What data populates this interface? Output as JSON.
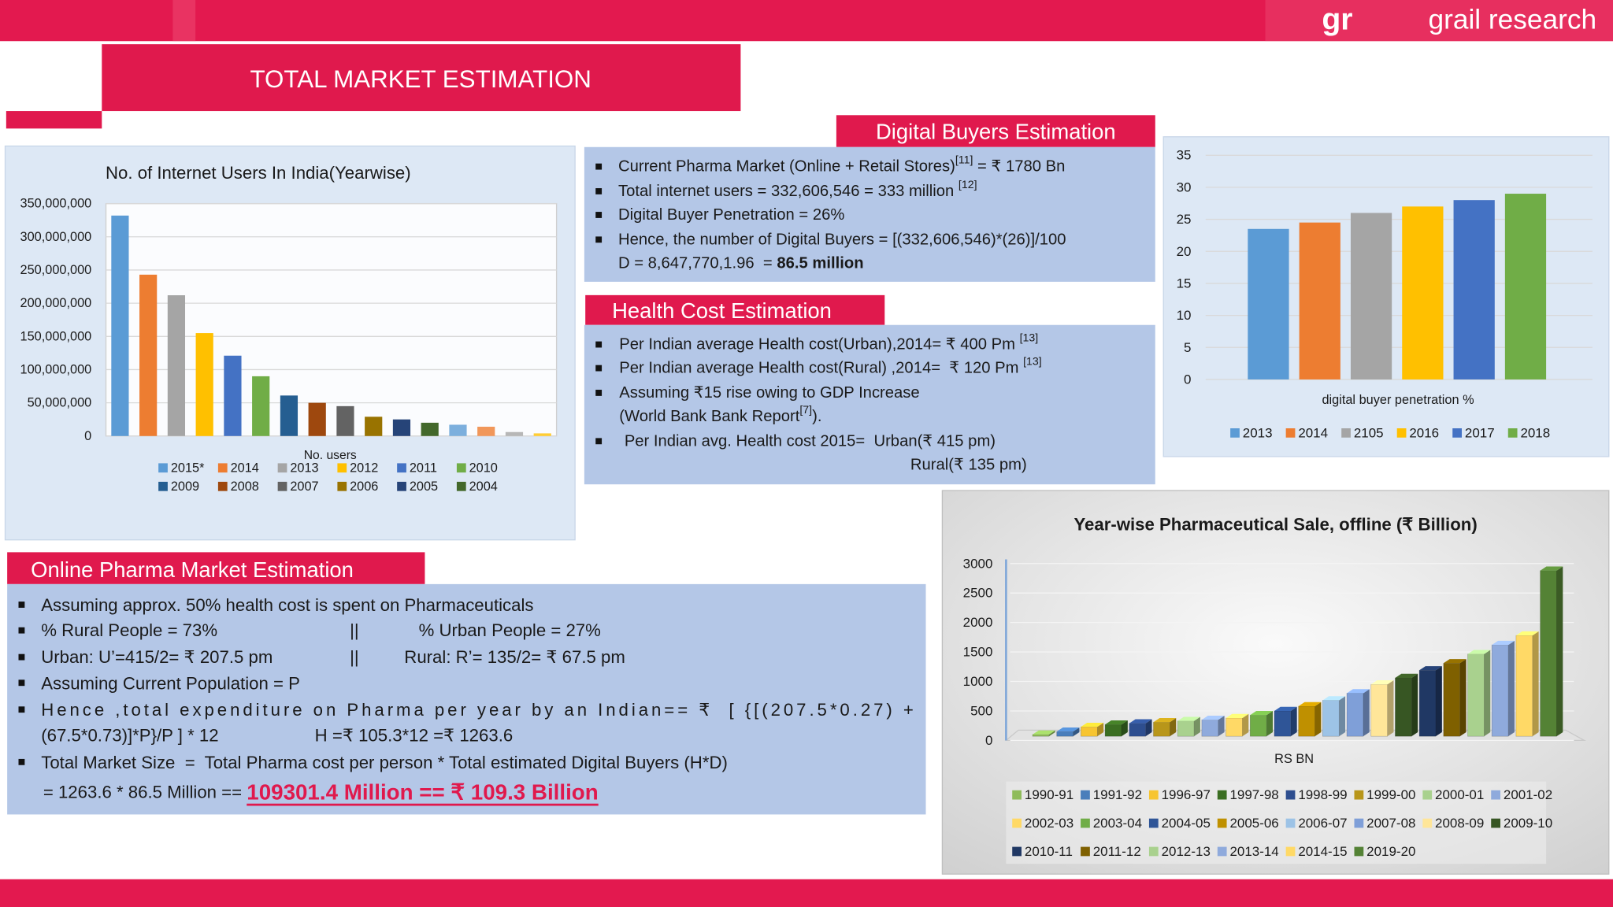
{
  "header": {
    "logo": "gr",
    "brand": "grail research",
    "title": "TOTAL MARKET ESTIMATION"
  },
  "panels": [
    {
      "heading": "Digital Buyers Estimation",
      "items": [
        {
          "lines": [
            [
              {
                "text": "Current Pharma Market (Online + Retail Stores)"
              },
              {
                "sup": "[11]"
              },
              {
                "text": " = ₹ 1780 Bn"
              }
            ]
          ]
        },
        {
          "lines": [
            [
              {
                "text": "Total internet users = 332,606,546 = 333 million "
              },
              {
                "sup": "[12]"
              }
            ]
          ]
        },
        {
          "lines": [
            [
              {
                "text": "Digital Buyer Penetration = 26%"
              }
            ]
          ]
        },
        {
          "lines": [
            [
              {
                "text": "Hence, the number of Digital Buyers = [(332,606,546)*(26)]/100"
              }
            ],
            [
              {
                "text": "D = 8,647,770,1.96  = "
              },
              {
                "bold": "86.5 million"
              }
            ]
          ]
        }
      ]
    },
    {
      "heading": "Health Cost Estimation",
      "items": [
        {
          "lines": [
            [
              {
                "text": "Per Indian average Health cost(Urban),2014= ₹ 400 Pm "
              },
              {
                "sup": "[13]"
              }
            ]
          ]
        },
        {
          "lines": [
            [
              {
                "text": "Per Indian average Health cost(Rural) ,2014=  ₹ 120 Pm "
              },
              {
                "sup": "[13]"
              }
            ]
          ]
        },
        {
          "lines": [
            [
              {
                "text": "Assuming ₹15 rise owing to GDP Increase"
              }
            ],
            [
              {
                "text": "(World Bank Bank Report"
              },
              {
                "sup": "[7]"
              },
              {
                "text": ")."
              }
            ]
          ]
        },
        {
          "lines": [
            [
              {
                "text": "Per Indian avg. Health cost 2015=  Urban(₹ 415 pm)"
              }
            ],
            [
              {
                "text": "Rural(₹ 135 pm)"
              }
            ]
          ]
        }
      ]
    },
    {
      "heading": "Online Pharma Market Estimation",
      "items": [
        {
          "lines": [
            [
              {
                "text": "Assuming approx. 50% health cost is spent on Pharmaceuticals"
              }
            ]
          ]
        },
        {
          "lines": [
            [
              {
                "text": "% Rural People = 73%"
              },
              {
                "text": "||"
              },
              {
                "text": "% Urban People = 27%"
              }
            ]
          ]
        },
        {
          "lines": [
            [
              {
                "text": "Urban: U’=415/2= ₹ 207.5 pm"
              },
              {
                "text": "||"
              },
              {
                "text": "Rural: R’= 135/2= ₹ 67.5 pm"
              }
            ]
          ]
        },
        {
          "lines": [
            [
              {
                "text": "Assuming Current Population = P"
              }
            ]
          ]
        },
        {
          "lines": [
            [
              {
                "text": "Hence ,total expenditure on Pharma per year by an Indian== ₹  [ {[(207.5*0.27) +"
              }
            ],
            [
              {
                "text": "(67.5*0.73)]*P}/P ] * 12"
              },
              {
                "text": "H =₹ 105.3*12 =₹ 1263.6"
              }
            ]
          ]
        },
        {
          "lines": [
            [
              {
                "text": "Total Market Size  =  Total Pharma cost per person * Total estimated Digital Buyers (H*D)"
              }
            ],
            [
              {
                "text": "= 1263.6 * 86.5 Million == "
              },
              {
                "highlight": "109301.4 Million == ₹ 109.3 Billion"
              }
            ]
          ]
        }
      ]
    }
  ],
  "chart_data": [
    {
      "type": "bar",
      "title": "No. of Internet Users In India(Yearwise)",
      "x_label": "No. users",
      "categories": [
        "2015*",
        "2014",
        "2013",
        "2012",
        "2011",
        "2010",
        "2009",
        "2008",
        "2007",
        "2006",
        "2005",
        "2004",
        null,
        null,
        null,
        null
      ],
      "values": [
        332000000,
        243000000,
        212000000,
        155000000,
        121000000,
        90000000,
        61000000,
        50000000,
        45000000,
        29000000,
        25000000,
        20000000,
        17000000,
        14000000,
        6000000,
        4000000
      ],
      "colors": [
        "#5b9bd5",
        "#ed7d31",
        "#a5a5a5",
        "#ffc000",
        "#4472c4",
        "#70ad47",
        "#255e91",
        "#9e480e",
        "#636363",
        "#997300",
        "#264478",
        "#43682b",
        "#7cafdd",
        "#f1975a",
        "#b7b7b7",
        "#ffcd33"
      ],
      "ylim": [
        0,
        350000000
      ],
      "yticks": [
        0,
        {
          "value": 50000000,
          "label": "50,000,000"
        },
        {
          "value": 100000000,
          "label": "100,000,000"
        },
        {
          "value": 150000000,
          "label": "150,000,000"
        },
        {
          "value": 200000000,
          "label": "200,000,000"
        },
        {
          "value": 250000000,
          "label": "250,000,000"
        },
        {
          "value": 300000000,
          "label": "300,000,000"
        },
        {
          "value": 350000000,
          "label": "350,000,000"
        }
      ],
      "grid": true,
      "legend": "bottom"
    },
    {
      "type": "bar",
      "x_label": "digital buyer penetration %",
      "categories": [
        "2013",
        "2014",
        "2105",
        "2016",
        "2017",
        "2018"
      ],
      "values": [
        23.5,
        24.5,
        26,
        27,
        28,
        29
      ],
      "colors": [
        "#5b9bd5",
        "#ed7d31",
        "#a5a5a5",
        "#ffc000",
        "#4472c4",
        "#70ad47"
      ],
      "ylim": [
        0,
        35
      ],
      "yticks": [
        0,
        5,
        10,
        15,
        20,
        25,
        30,
        35
      ],
      "grid": true,
      "legend": "bottom"
    },
    {
      "type": "bar3d",
      "title": "Year-wise Pharmaceutical Sale, offline (₹ Billion)",
      "x_label": "RS BN",
      "categories": [
        "1990-91",
        "1991-92",
        "1996-97",
        "1997-98",
        "1998-99",
        "1999-00",
        "2000-01",
        "2001-02",
        "2002-03",
        "2003-04",
        "2004-05",
        "2005-06",
        "2006-07",
        "2007-08",
        "2008-09",
        "2009-10",
        "2010-11",
        "2011-12",
        "2012-13",
        "2013-14",
        "2014-15",
        "2019-20"
      ],
      "values": [
        100,
        150,
        230,
        270,
        290,
        310,
        330,
        350,
        380,
        430,
        500,
        580,
        680,
        800,
        950,
        1060,
        1190,
        1310,
        1465,
        1620,
        1780,
        2880
      ],
      "colors": [
        "#8fbc5a",
        "#4a7ebb",
        "#f7c531",
        "#3b6e22",
        "#2e4e8f",
        "#b8961a",
        "#a9d18e",
        "#8faadc",
        "#ffd966",
        "#70ad47",
        "#2f5597",
        "#bf9000",
        "#9dc3e6",
        "#7f9fd8",
        "#ffe699",
        "#375623",
        "#203864",
        "#7f6000",
        "#a9d18e",
        "#8faadc",
        "#ffd966",
        "#548235"
      ],
      "ylim": [
        0,
        3000
      ],
      "yticks": [
        0,
        500,
        1000,
        1500,
        2000,
        2500,
        3000
      ],
      "grid": true,
      "legend": "bottom"
    }
  ]
}
